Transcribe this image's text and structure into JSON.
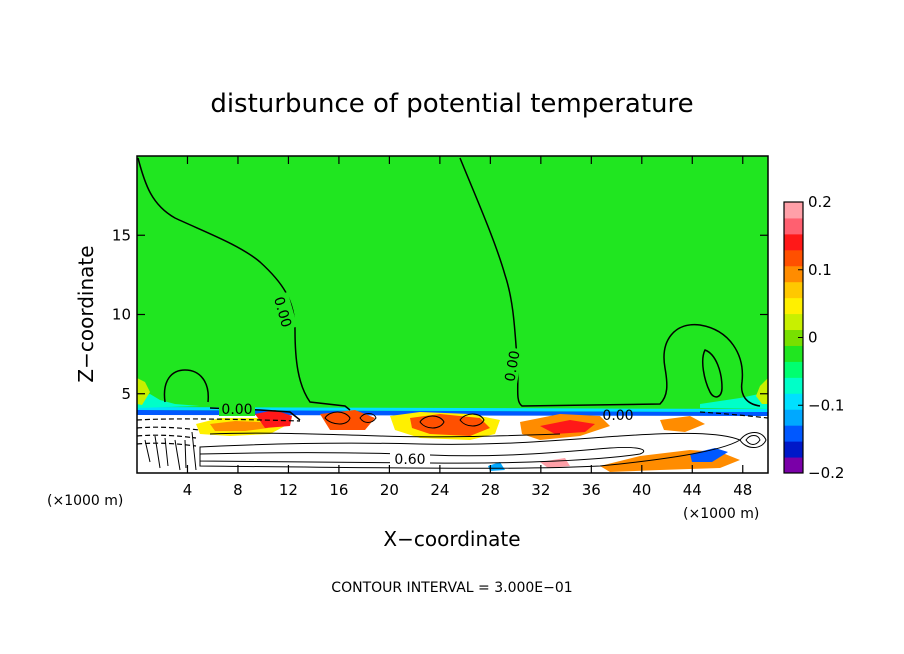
{
  "chart_data": {
    "type": "heatmap",
    "title": "disturbunce of potential temperature",
    "xlabel": "X−coordinate",
    "ylabel": "Z−coordinate",
    "x_unit_left": "(×1000 m)",
    "x_unit_right": "(×1000 m)",
    "xlim": [
      0,
      50
    ],
    "ylim": [
      0,
      20
    ],
    "x_ticks": [
      4,
      8,
      12,
      16,
      20,
      24,
      28,
      32,
      36,
      40,
      44,
      48
    ],
    "y_ticks": [
      5,
      10,
      15
    ],
    "colorbar": {
      "min": -0.2,
      "max": 0.2,
      "tick_values": [
        0.2,
        0.1,
        0,
        -0.1,
        -0.2
      ],
      "tick_labels": [
        "0.2",
        "0.1",
        "0",
        "−0.1",
        "−0.2"
      ],
      "colors": [
        "#7a00a8",
        "#0018c8",
        "#0058ff",
        "#00a8ff",
        "#00e0ff",
        "#00ffc8",
        "#00ff70",
        "#20e620",
        "#78e000",
        "#c8f000",
        "#fff000",
        "#ffc800",
        "#ff8c00",
        "#ff5000",
        "#ff1818",
        "#ff6070",
        "#ffa0a8"
      ]
    },
    "contour_labels": [
      "0.00",
      "0.00",
      "0.00",
      "0.00",
      "0.60"
    ],
    "contour_interval_text": "CONTOUR INTERVAL = 3.000E−01"
  }
}
